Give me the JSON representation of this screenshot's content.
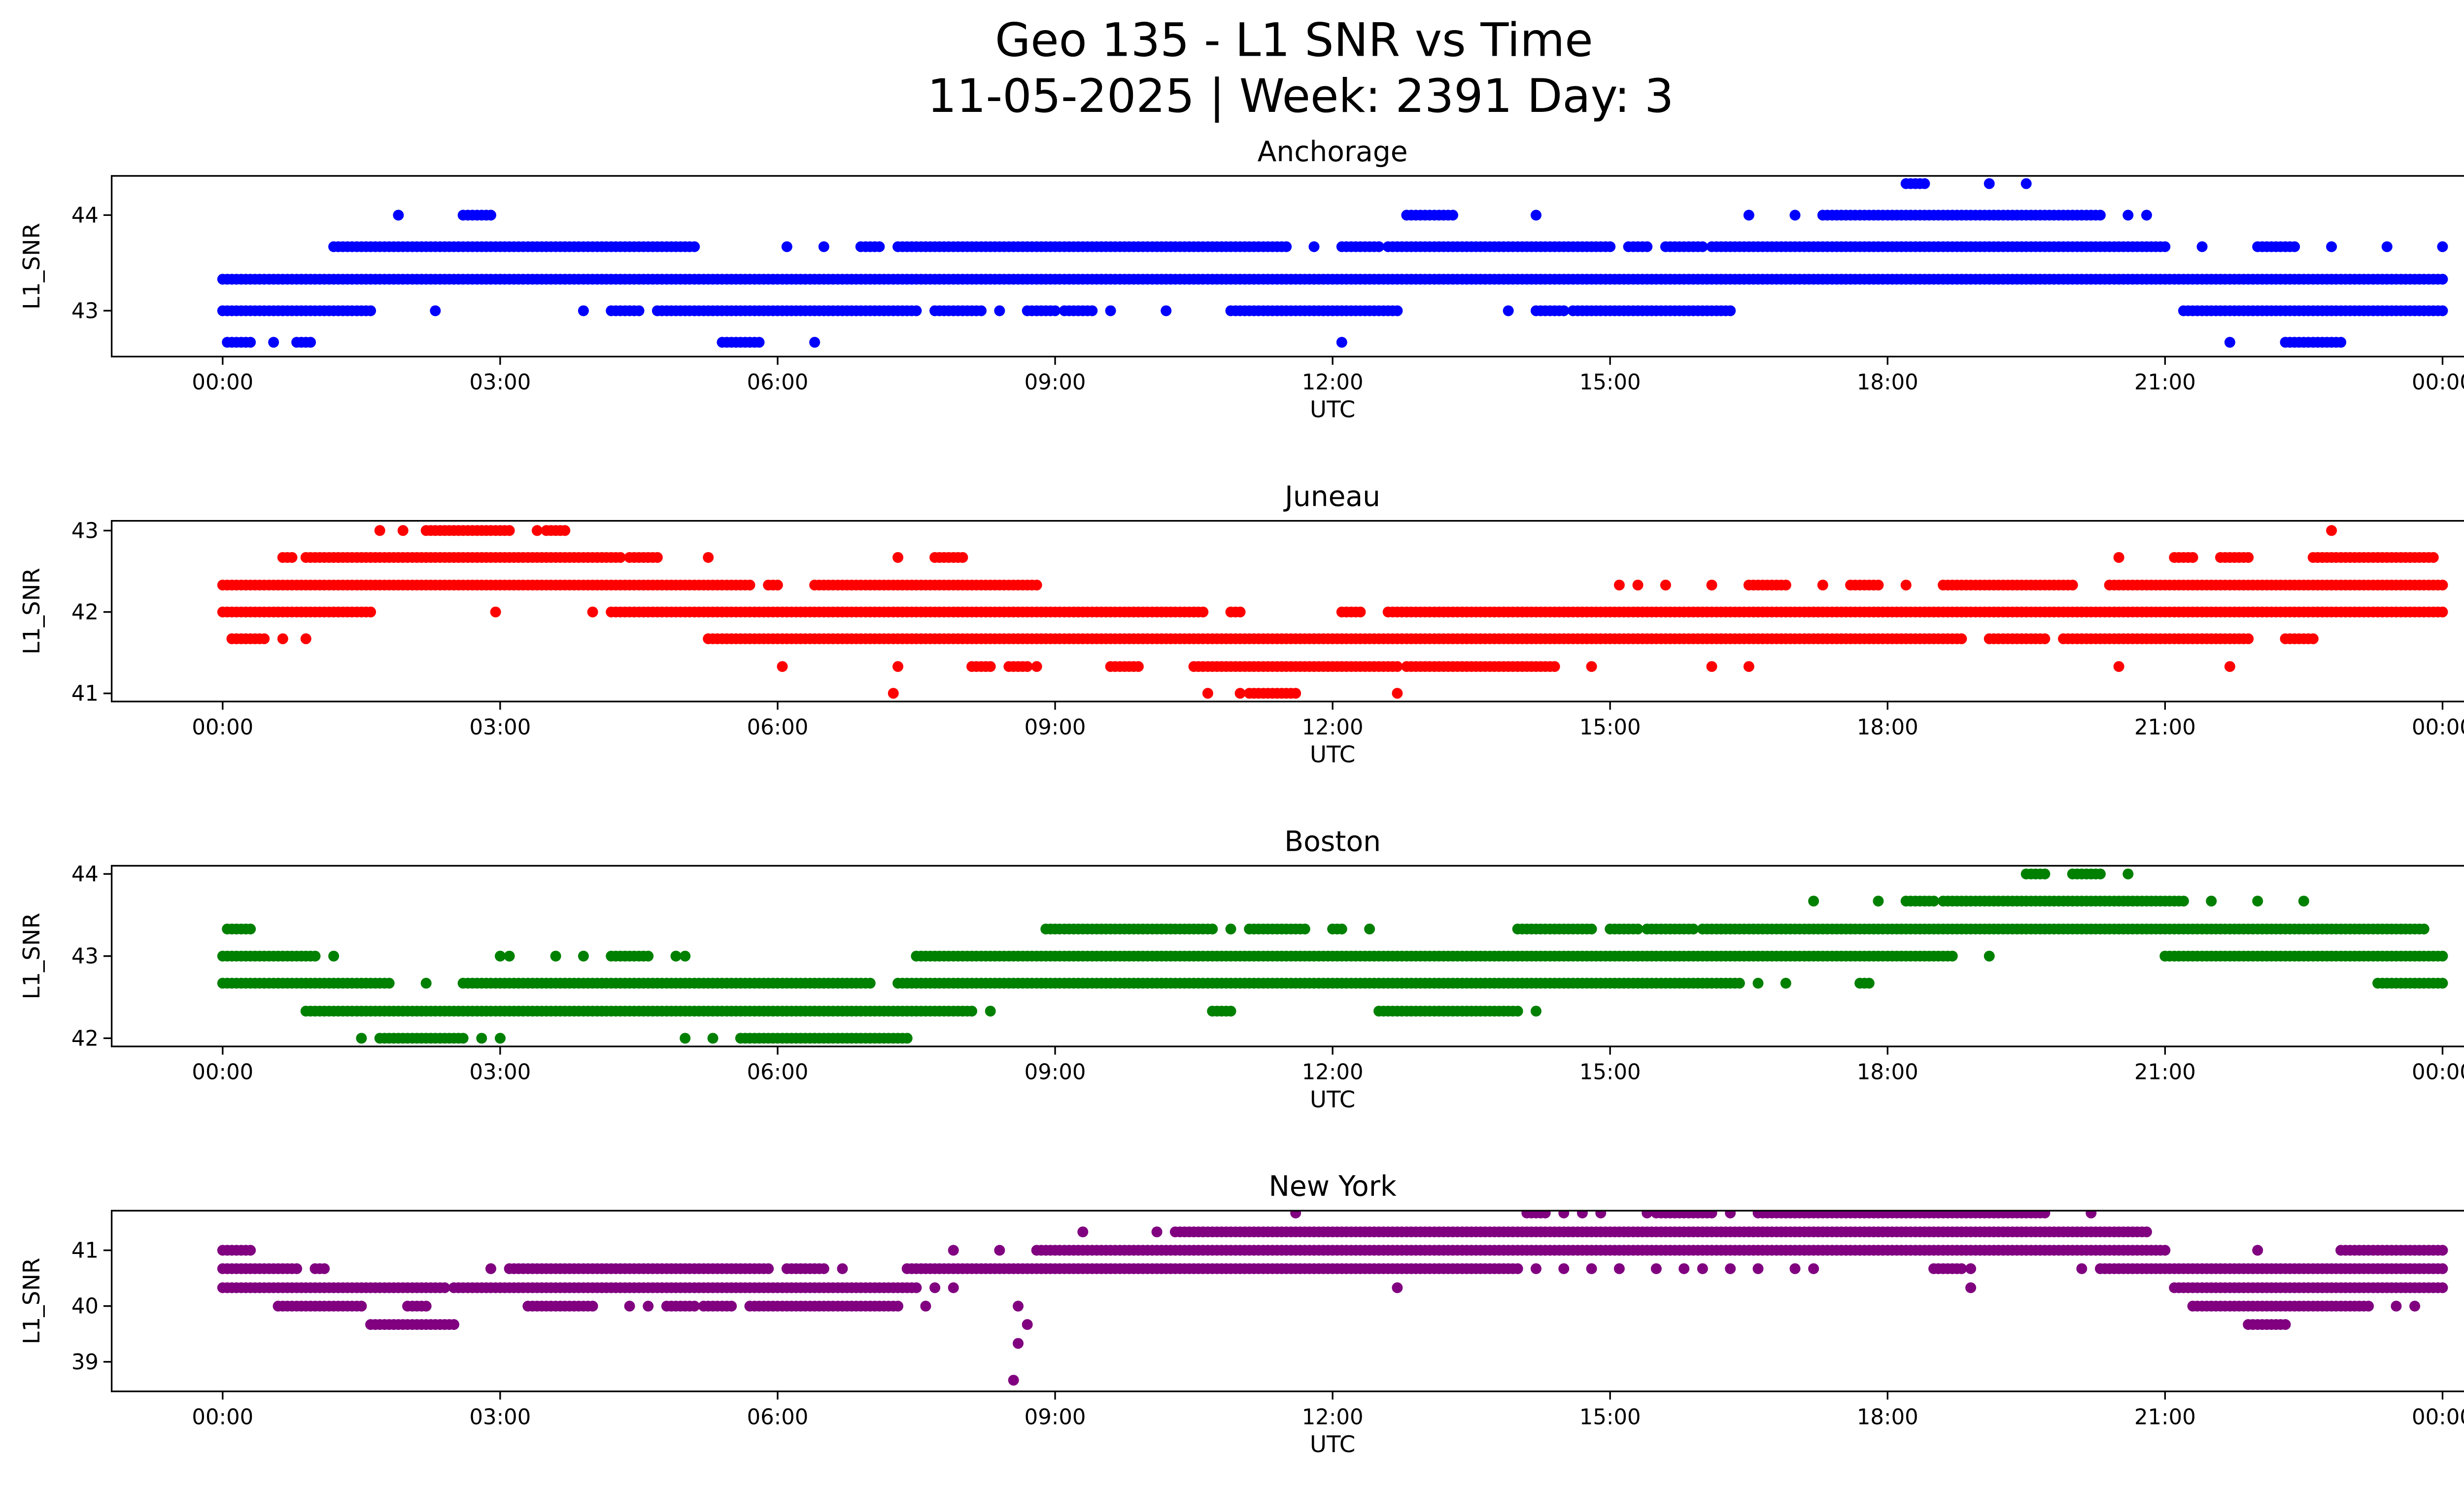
{
  "chart_data": {
    "title": "Geo 135 - L1 SNR vs Time",
    "subtitle": "11-05-2025 | Week: 2391 Day: 3",
    "type": "scatter",
    "x_ticks": [
      {
        "h": 0,
        "label": "00:00"
      },
      {
        "h": 3,
        "label": "03:00"
      },
      {
        "h": 6,
        "label": "06:00"
      },
      {
        "h": 9,
        "label": "09:00"
      },
      {
        "h": 12,
        "label": "12:00"
      },
      {
        "h": 15,
        "label": "15:00"
      },
      {
        "h": 18,
        "label": "18:00"
      },
      {
        "h": 21,
        "label": "21:00"
      },
      {
        "h": 24,
        "label": "00:00"
      }
    ],
    "x_range_hours": [
      -1.2,
      25.2
    ],
    "panels": [
      {
        "title": "Anchorage",
        "xlabel": "UTC",
        "ylabel": "L1_SNR",
        "color": "#0000ff",
        "ylim": [
          42.52,
          44.41
        ],
        "y_ticks": [
          43,
          44
        ],
        "levels": [
          {
            "y": 44.33,
            "runs": [
              [
                18.2,
                18.4
              ],
              [
                19.1
              ],
              [
                19.5
              ]
            ]
          },
          {
            "y": 44.0,
            "runs": [
              [
                1.9
              ],
              [
                2.6,
                2.9
              ],
              [
                12.8,
                13.3
              ],
              [
                14.2
              ],
              [
                16.5
              ],
              [
                17.0
              ],
              [
                17.3,
                20.3
              ],
              [
                20.6
              ],
              [
                20.8
              ]
            ]
          },
          {
            "y": 43.67,
            "runs": [
              [
                1.2,
                5.1
              ],
              [
                6.1
              ],
              [
                6.5
              ],
              [
                6.9,
                7.1
              ],
              [
                7.3,
                11.5
              ],
              [
                11.8
              ],
              [
                12.1,
                12.5
              ],
              [
                12.6,
                15.0
              ],
              [
                15.2,
                15.4
              ],
              [
                15.6,
                16.0
              ],
              [
                16.1,
                21.0
              ],
              [
                21.4
              ],
              [
                22.0,
                22.4
              ],
              [
                22.8
              ],
              [
                23.4
              ],
              [
                24.0
              ]
            ]
          },
          {
            "y": 43.33,
            "runs": [
              [
                0,
                24
              ]
            ]
          },
          {
            "y": 43.0,
            "runs": [
              [
                0,
                1.6
              ],
              [
                2.3
              ],
              [
                3.9
              ],
              [
                4.2,
                4.5
              ],
              [
                4.7,
                7.5
              ],
              [
                7.7,
                8.2
              ],
              [
                8.4
              ],
              [
                8.7,
                9.0
              ],
              [
                9.1,
                9.4
              ],
              [
                9.6
              ],
              [
                10.2
              ],
              [
                10.9,
                12.7
              ],
              [
                13.9
              ],
              [
                14.2,
                14.5
              ],
              [
                14.6,
                16.3
              ],
              [
                21.2,
                24
              ]
            ]
          },
          {
            "y": 42.67,
            "runs": [
              [
                0.05,
                0.3
              ],
              [
                0.55
              ],
              [
                0.8,
                0.95
              ],
              [
                5.4,
                5.8
              ],
              [
                6.4
              ],
              [
                12.1
              ],
              [
                21.7
              ],
              [
                22.3,
                22.9
              ]
            ]
          }
        ]
      },
      {
        "title": "Juneau",
        "xlabel": "UTC",
        "ylabel": "L1_SNR",
        "color": "#ff0000",
        "ylim": [
          40.9,
          43.12
        ],
        "y_ticks": [
          41,
          42,
          43
        ],
        "levels": [
          {
            "y": 43.0,
            "runs": [
              [
                1.7
              ],
              [
                1.95
              ],
              [
                2.2,
                3.1
              ],
              [
                3.4
              ],
              [
                3.5,
                3.7
              ],
              [
                22.8
              ]
            ]
          },
          {
            "y": 42.67,
            "runs": [
              [
                0.65,
                0.75
              ],
              [
                0.9,
                4.3
              ],
              [
                4.4,
                4.7
              ],
              [
                5.25
              ],
              [
                7.3
              ],
              [
                7.7,
                8.0
              ],
              [
                20.5
              ],
              [
                21.1,
                21.3
              ],
              [
                21.6,
                21.9
              ],
              [
                22.6,
                23.9
              ]
            ]
          },
          {
            "y": 42.33,
            "runs": [
              [
                0,
                5.7
              ],
              [
                5.9,
                6.0
              ],
              [
                6.4,
                8.8
              ],
              [
                15.1
              ],
              [
                15.3
              ],
              [
                15.6
              ],
              [
                16.1
              ],
              [
                16.5,
                16.9
              ],
              [
                17.3
              ],
              [
                17.6,
                17.9
              ],
              [
                18.2
              ],
              [
                18.6,
                20.0
              ],
              [
                20.4,
                24
              ]
            ]
          },
          {
            "y": 42.0,
            "runs": [
              [
                0,
                1.6
              ],
              [
                2.95
              ],
              [
                4.0
              ],
              [
                4.2,
                10.6
              ],
              [
                10.9,
                11.0
              ],
              [
                12.1,
                12.3
              ],
              [
                12.6,
                24
              ]
            ]
          },
          {
            "y": 41.67,
            "runs": [
              [
                0.1,
                0.45
              ],
              [
                0.65
              ],
              [
                0.9
              ],
              [
                5.25,
                18.8
              ],
              [
                19.1,
                19.7
              ],
              [
                19.9,
                21.9
              ],
              [
                22.3,
                22.6
              ]
            ]
          },
          {
            "y": 41.33,
            "runs": [
              [
                6.05
              ],
              [
                7.3
              ],
              [
                8.1,
                8.3
              ],
              [
                8.5,
                8.7
              ],
              [
                8.8
              ],
              [
                9.6,
                9.9
              ],
              [
                10.5,
                12.7
              ],
              [
                12.8,
                14.4
              ],
              [
                14.8
              ],
              [
                16.1
              ],
              [
                16.5
              ],
              [
                20.5
              ],
              [
                21.7
              ]
            ]
          },
          {
            "y": 41.0,
            "runs": [
              [
                7.25
              ],
              [
                10.65
              ],
              [
                11.0
              ],
              [
                11.1,
                11.6
              ],
              [
                12.7
              ]
            ]
          }
        ]
      },
      {
        "title": "Boston",
        "xlabel": "UTC",
        "ylabel": "L1_SNR",
        "color": "#008000",
        "ylim": [
          41.9,
          44.1
        ],
        "y_ticks": [
          42,
          43,
          44
        ],
        "levels": [
          {
            "y": 44.0,
            "runs": [
              [
                19.5,
                19.7
              ],
              [
                20.0,
                20.3
              ],
              [
                20.6
              ]
            ]
          },
          {
            "y": 43.67,
            "runs": [
              [
                17.2
              ],
              [
                17.9
              ],
              [
                18.2,
                18.5
              ],
              [
                18.6,
                21.2
              ],
              [
                21.5
              ],
              [
                22.0
              ],
              [
                22.5
              ]
            ]
          },
          {
            "y": 43.33,
            "runs": [
              [
                0.05,
                0.3
              ],
              [
                8.9,
                10.7
              ],
              [
                10.9
              ],
              [
                11.1,
                11.7
              ],
              [
                12.0,
                12.1
              ],
              [
                12.4
              ],
              [
                14.0,
                14.8
              ],
              [
                15.0,
                15.3
              ],
              [
                15.4,
                15.9
              ],
              [
                16.0,
                23.8
              ]
            ]
          },
          {
            "y": 43.0,
            "runs": [
              [
                0,
                1.0
              ],
              [
                1.2
              ],
              [
                3.0
              ],
              [
                3.1
              ],
              [
                3.6
              ],
              [
                3.9
              ],
              [
                4.2,
                4.6
              ],
              [
                4.9
              ],
              [
                5.0
              ],
              [
                7.5,
                18.7
              ],
              [
                19.1
              ],
              [
                21.0,
                24
              ]
            ]
          },
          {
            "y": 42.67,
            "runs": [
              [
                0,
                1.8
              ],
              [
                2.2
              ],
              [
                2.6,
                7.0
              ],
              [
                7.3,
                16.4
              ],
              [
                16.6
              ],
              [
                16.9
              ],
              [
                17.7,
                17.8
              ],
              [
                23.3,
                24
              ]
            ]
          },
          {
            "y": 42.33,
            "runs": [
              [
                0.9,
                8.1
              ],
              [
                8.3
              ],
              [
                10.7,
                10.9
              ],
              [
                12.5,
                14.0
              ],
              [
                14.2
              ]
            ]
          },
          {
            "y": 42.0,
            "runs": [
              [
                1.5
              ],
              [
                1.7,
                2.6
              ],
              [
                2.8
              ],
              [
                3.0
              ],
              [
                5.0
              ],
              [
                5.3
              ],
              [
                5.6,
                7.4
              ]
            ]
          }
        ]
      },
      {
        "title": "New York",
        "xlabel": "UTC",
        "ylabel": "L1_SNR",
        "color": "#800080",
        "ylim": [
          38.47,
          41.71
        ],
        "y_ticks": [
          39,
          40,
          41
        ],
        "levels": [
          {
            "y": 41.67,
            "runs": [
              [
                11.6
              ],
              [
                14.1,
                14.3
              ],
              [
                14.5
              ],
              [
                14.7
              ],
              [
                14.9
              ],
              [
                15.4
              ],
              [
                15.5,
                16.1
              ],
              [
                16.3
              ],
              [
                16.6,
                19.7
              ],
              [
                20.2
              ]
            ]
          },
          {
            "y": 41.33,
            "runs": [
              [
                9.3
              ],
              [
                10.1
              ],
              [
                10.3,
                10.6
              ],
              [
                10.6,
                20.8
              ]
            ]
          },
          {
            "y": 41.0,
            "runs": [
              [
                0,
                0.3
              ],
              [
                7.9
              ],
              [
                8.4
              ],
              [
                8.8,
                21.0
              ],
              [
                22.0
              ],
              [
                22.9,
                24
              ]
            ]
          },
          {
            "y": 40.67,
            "runs": [
              [
                0,
                0.8
              ],
              [
                1.0,
                1.1
              ],
              [
                2.9
              ],
              [
                3.1,
                5.9
              ],
              [
                6.1,
                6.5
              ],
              [
                6.7
              ],
              [
                7.4,
                14.0
              ],
              [
                14.2
              ],
              [
                14.5
              ],
              [
                14.8
              ],
              [
                15.1
              ],
              [
                15.5
              ],
              [
                15.8
              ],
              [
                16.0
              ],
              [
                16.3
              ],
              [
                16.6
              ],
              [
                17.0
              ],
              [
                17.2
              ],
              [
                18.5,
                18.8
              ],
              [
                18.9
              ],
              [
                20.1
              ],
              [
                20.3,
                24
              ]
            ]
          },
          {
            "y": 40.33,
            "runs": [
              [
                0,
                2.4
              ],
              [
                2.5,
                7.5
              ],
              [
                7.7
              ],
              [
                7.9
              ],
              [
                12.7
              ],
              [
                18.9
              ],
              [
                21.1,
                24
              ]
            ]
          },
          {
            "y": 40.0,
            "runs": [
              [
                0.6,
                1.5
              ],
              [
                2.0,
                2.2
              ],
              [
                3.3,
                4.0
              ],
              [
                4.4
              ],
              [
                4.6
              ],
              [
                4.8,
                5.1
              ],
              [
                5.2,
                5.5
              ],
              [
                5.7,
                7.3
              ],
              [
                7.6
              ],
              [
                8.6
              ],
              [
                21.3,
                23.2
              ],
              [
                23.5
              ],
              [
                23.7
              ]
            ]
          },
          {
            "y": 39.67,
            "runs": [
              [
                1.6,
                2.5
              ],
              [
                8.7
              ],
              [
                21.9,
                22.3
              ]
            ]
          },
          {
            "y": 39.33,
            "runs": [
              [
                8.6
              ]
            ]
          },
          {
            "y": 38.67,
            "runs": [
              [
                8.55
              ]
            ]
          }
        ]
      }
    ]
  }
}
